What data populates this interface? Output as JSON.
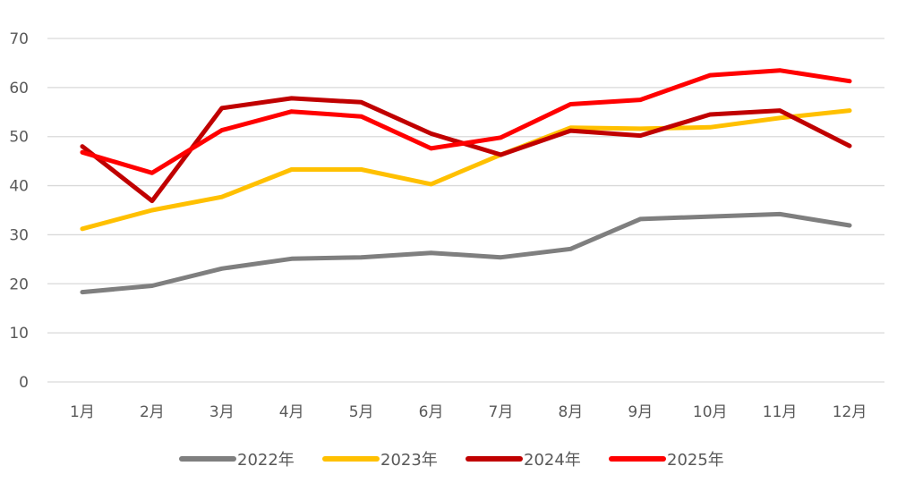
{
  "chart_data": {
    "type": "line",
    "title": "",
    "xlabel": "",
    "ylabel": "",
    "categories": [
      "1月",
      "2月",
      "3月",
      "4月",
      "5月",
      "6月",
      "7月",
      "8月",
      "9月",
      "10月",
      "11月",
      "12月"
    ],
    "ylim": [
      0,
      70
    ],
    "yticks": [
      0,
      10,
      20,
      30,
      40,
      50,
      60,
      70
    ],
    "grid": true,
    "legend": "bottom",
    "series": [
      {
        "name": "2022年",
        "color": "#7f7f7f",
        "values": [
          18.3,
          19.6,
          23.1,
          25.1,
          25.4,
          26.3,
          25.4,
          27.1,
          33.2,
          33.7,
          34.2,
          31.9
        ]
      },
      {
        "name": "2023年",
        "color": "#ffc000",
        "values": [
          31.2,
          35.0,
          37.7,
          43.3,
          43.3,
          40.3,
          46.3,
          51.8,
          51.6,
          51.9,
          53.8,
          55.3
        ]
      },
      {
        "name": "2024年",
        "color": "#c00000",
        "values": [
          48.0,
          36.9,
          55.8,
          57.8,
          57.0,
          50.6,
          46.3,
          51.2,
          50.2,
          54.5,
          55.3,
          48.1
        ]
      },
      {
        "name": "2025年",
        "color": "#ff0000",
        "values": [
          46.8,
          42.6,
          51.3,
          55.1,
          54.1,
          47.6,
          49.8,
          56.6,
          57.5,
          62.5,
          63.5,
          61.3
        ]
      }
    ]
  }
}
